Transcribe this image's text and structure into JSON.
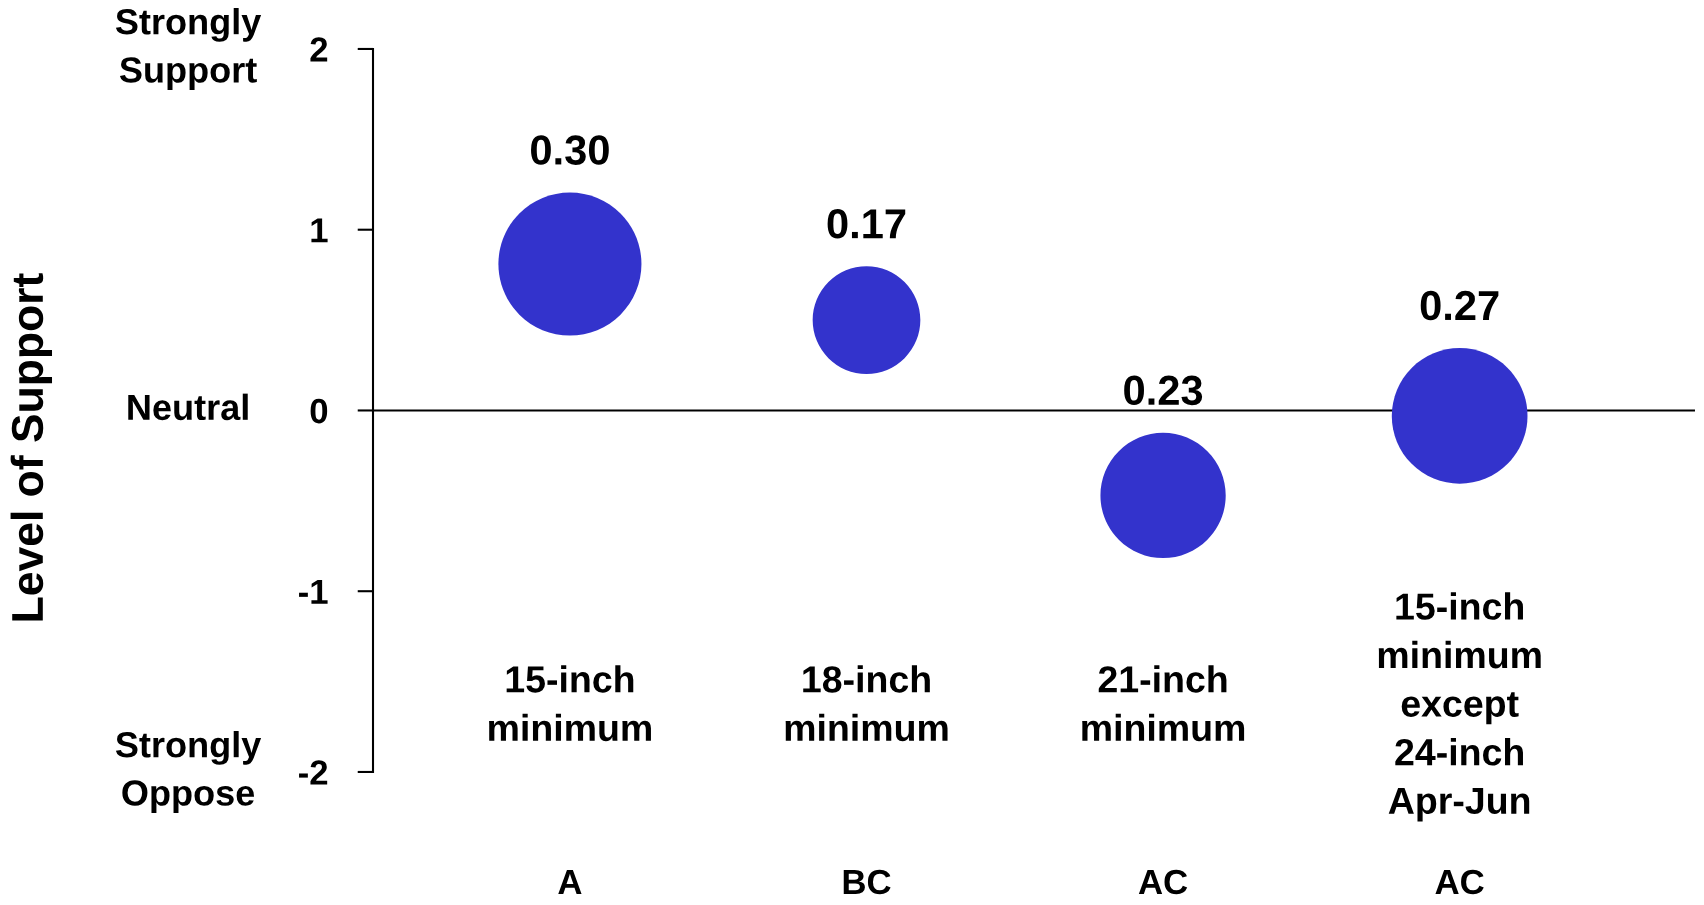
{
  "chart_data": {
    "type": "bubble",
    "categories": [
      "A",
      "BC",
      "AC",
      "AC"
    ],
    "values": [
      0.81,
      0.5,
      -0.47,
      -0.03
    ],
    "sizes": [
      0.3,
      0.17,
      0.23,
      0.27
    ],
    "value_labels": [
      "0.30",
      "0.17",
      "0.23",
      "0.27"
    ],
    "color": "#3333cc",
    "marker": "circle",
    "ylim": [
      -2,
      2
    ],
    "yticks": [
      -2,
      -1,
      0,
      1,
      2
    ],
    "annotations": [
      "Level of Support",
      "Strongly Support",
      "Neutral",
      "Strongly Oppose",
      "15-inch minimum",
      "18-inch minimum",
      "21-inch minimum",
      "15-inch minimum except 24-inch Apr-Jun"
    ]
  }
}
